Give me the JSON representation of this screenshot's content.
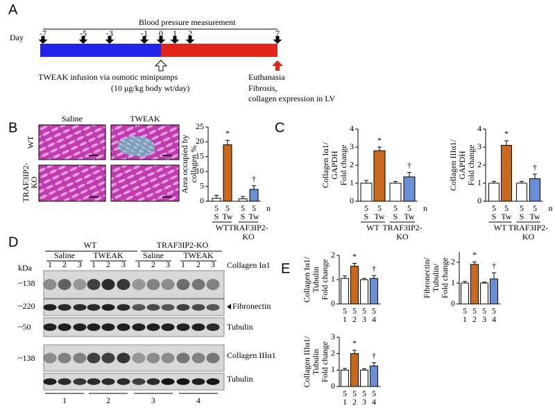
{
  "panels": [
    "A",
    "B",
    "C",
    "D",
    "E"
  ],
  "timeline": {
    "title": "Blood pressure measurement",
    "day_label": "Day",
    "days": [
      "-7",
      "-5",
      "-3",
      "-1",
      "0",
      "1",
      "2",
      "7"
    ],
    "infusion": "TWEAK infusion via osmotic minipumps",
    "dose": "(10 μg/kg body wt/day)",
    "endpoint": [
      "Euthanasia",
      "Fibrosis,",
      "collagen expression in LV"
    ]
  },
  "histology": {
    "columns": [
      "Saline",
      "TWEAK"
    ],
    "rows": [
      [
        "WT"
      ],
      [
        "TRAF3IP2-",
        "KO"
      ]
    ]
  },
  "blot": {
    "groups": [
      "WT",
      "TRAF3IP2-KO"
    ],
    "treatments": [
      "Saline",
      "TWEAK",
      "Saline",
      "TWEAK"
    ],
    "lanes": [
      "1",
      "2",
      "3"
    ],
    "kda": [
      "kDa",
      "~138",
      "~220",
      "~50",
      "~138"
    ],
    "bands": [
      "Collagen Iα1",
      "Fibronectin",
      "Tubulin",
      "Collagen IIIα1",
      "Tubulin"
    ],
    "group_numbers": [
      "1",
      "2",
      "3",
      "4"
    ]
  },
  "chart_data": [
    {
      "type": "bar",
      "y_label": [
        "Area occupied by",
        "collagen %"
      ],
      "ylim": [
        0,
        25
      ],
      "yticks": [
        0,
        5,
        10,
        15,
        20,
        25
      ],
      "categories": [
        "S",
        "Tw",
        "S",
        "Tw"
      ],
      "values": [
        1,
        19,
        0.8,
        4
      ],
      "errors": [
        1,
        1.5,
        0.8,
        1.2
      ],
      "colors": [
        "#ffffff",
        "#c8691c",
        "#ffffff",
        "#6a8fd6"
      ],
      "n": [
        "5",
        "5",
        "5",
        "5"
      ],
      "n_label": "n",
      "groups": [
        [
          "WT"
        ],
        [
          "TRAF3IP2-",
          "KO"
        ]
      ],
      "annotations": {
        "1": "*",
        "3": "†"
      }
    },
    {
      "type": "bar",
      "y_label": [
        "Collagen Iα1/",
        "GAPDH",
        "Fold change"
      ],
      "ylim": [
        0,
        4
      ],
      "yticks": [
        0,
        1,
        2,
        3,
        4
      ],
      "categories": [
        "S",
        "Tw",
        "S",
        "Tw"
      ],
      "values": [
        1,
        2.8,
        1,
        1.35
      ],
      "errors": [
        0.15,
        0.2,
        0.1,
        0.25
      ],
      "colors": [
        "#ffffff",
        "#c8691c",
        "#ffffff",
        "#6a8fd6"
      ],
      "n": [
        "5",
        "5",
        "5",
        "5"
      ],
      "n_label": "n",
      "groups": [
        [
          "WT"
        ],
        [
          "TRAF3IP2-",
          "KO"
        ]
      ],
      "annotations": {
        "1": "*",
        "3": "†"
      }
    },
    {
      "type": "bar",
      "y_label": [
        "Collagen IIIα1/",
        "GAPDH",
        "Fold change"
      ],
      "ylim": [
        0,
        4
      ],
      "yticks": [
        0,
        1,
        2,
        3,
        4
      ],
      "categories": [
        "S",
        "Tw",
        "S",
        "Tw"
      ],
      "values": [
        1,
        3.1,
        1,
        1.25
      ],
      "errors": [
        0.1,
        0.25,
        0.1,
        0.25
      ],
      "colors": [
        "#ffffff",
        "#c8691c",
        "#ffffff",
        "#6a8fd6"
      ],
      "n": [
        "5",
        "5",
        "5",
        "5"
      ],
      "n_label": "n",
      "groups": [
        [
          "WT"
        ],
        [
          "TRAF3IP2-",
          "KO"
        ]
      ],
      "annotations": {
        "1": "*",
        "3": "†"
      }
    },
    {
      "type": "bar",
      "y_label": [
        "Collagen Iα1/",
        "Tubulin",
        "Fold change"
      ],
      "ylim": [
        0,
        2
      ],
      "yticks": [
        0,
        1,
        2
      ],
      "categories": [
        "1",
        "2",
        "3",
        "4"
      ],
      "values": [
        1.05,
        1.55,
        1.0,
        1.05
      ],
      "errors": [
        0.1,
        0.12,
        0.05,
        0.12
      ],
      "colors": [
        "#ffffff",
        "#c8691c",
        "#ffffff",
        "#6a8fd6"
      ],
      "n": [
        "5",
        "5",
        "5",
        "5"
      ],
      "annotations": {
        "1": "*",
        "3": "†"
      }
    },
    {
      "type": "bar",
      "y_label": [
        "Fibronectin/",
        "Tubulin/",
        "Fold change"
      ],
      "ylim": [
        0,
        2.5
      ],
      "yticks": [
        0,
        1,
        2
      ],
      "categories": [
        "1",
        "2",
        "3",
        "4"
      ],
      "values": [
        1.0,
        1.9,
        1.0,
        1.2
      ],
      "errors": [
        0.08,
        0.12,
        0.05,
        0.3
      ],
      "colors": [
        "#ffffff",
        "#c8691c",
        "#ffffff",
        "#6a8fd6"
      ],
      "n": [
        "5",
        "5",
        "5",
        "5"
      ],
      "annotations": {
        "1": "*",
        "3": "†"
      }
    },
    {
      "type": "bar",
      "y_label": [
        "Collagen IIIα1/",
        "Tubulin",
        "Fold change"
      ],
      "ylim": [
        0,
        3
      ],
      "yticks": [
        0,
        1,
        2,
        3
      ],
      "categories": [
        "1",
        "2",
        "3",
        "4"
      ],
      "values": [
        1.0,
        2.0,
        1.0,
        1.25
      ],
      "errors": [
        0.1,
        0.2,
        0.08,
        0.2
      ],
      "colors": [
        "#ffffff",
        "#c8691c",
        "#ffffff",
        "#6a8fd6"
      ],
      "n": [
        "5",
        "5",
        "5",
        "5"
      ],
      "annotations": {
        "1": "*",
        "3": "†"
      }
    }
  ]
}
